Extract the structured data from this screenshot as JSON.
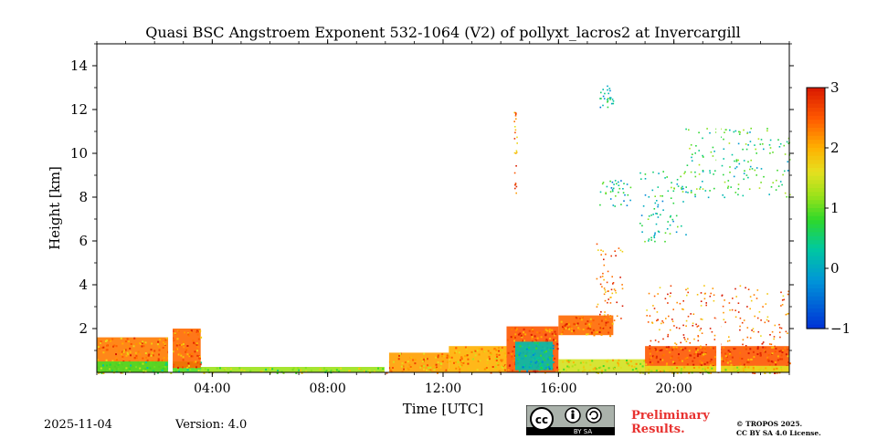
{
  "chart_data": {
    "type": "heatmap",
    "title": "Quasi BSC Angstroem Exponent 532-1064 (V2) of pollyxt_lacros2 at Invercargill",
    "xlabel": "Time [UTC]",
    "ylabel": "Height [km]",
    "xlim_hours": [
      0,
      24
    ],
    "ylim_km": [
      0,
      15
    ],
    "x_ticks": [
      {
        "hour": 4,
        "label": "04:00"
      },
      {
        "hour": 8,
        "label": "08:00"
      },
      {
        "hour": 12,
        "label": "12:00"
      },
      {
        "hour": 16,
        "label": "16:00"
      },
      {
        "hour": 20,
        "label": "20:00"
      }
    ],
    "y_ticks": [
      {
        "km": 2,
        "label": "2"
      },
      {
        "km": 4,
        "label": "4"
      },
      {
        "km": 6,
        "label": "6"
      },
      {
        "km": 8,
        "label": "8"
      },
      {
        "km": 10,
        "label": "10"
      },
      {
        "km": 12,
        "label": "12"
      },
      {
        "km": 14,
        "label": "14"
      }
    ],
    "colorbar": {
      "range": [
        -1,
        3
      ],
      "ticks": [
        {
          "value": 3,
          "label": "3"
        },
        {
          "value": 2,
          "label": "2"
        },
        {
          "value": 1,
          "label": "1"
        },
        {
          "value": 0,
          "label": "0"
        },
        {
          "value": -1,
          "label": "−1"
        }
      ]
    },
    "regions": [
      {
        "name": "boundary-layer-morning",
        "t0": 0.0,
        "t1": 2.6,
        "h0": 0.0,
        "h1": 1.6,
        "value": 2.3
      },
      {
        "name": "boundary-layer-morning-base",
        "t0": 0.0,
        "t1": 3.6,
        "h0": 0.0,
        "h1": 0.5,
        "value": 0.9
      },
      {
        "name": "aerosol-plume-03h",
        "t0": 2.6,
        "t1": 3.6,
        "h0": 0.2,
        "h1": 2.0,
        "value": 2.4
      },
      {
        "name": "low-layer-04-10h",
        "t0": 3.6,
        "t1": 10.0,
        "h0": 0.0,
        "h1": 0.25,
        "value": 1.2
      },
      {
        "name": "low-layer-10-12h",
        "t0": 10.0,
        "t1": 12.2,
        "h0": 0.0,
        "h1": 0.9,
        "value": 2.1
      },
      {
        "name": "low-layer-12-14h",
        "t0": 12.2,
        "t1": 14.2,
        "h0": 0.0,
        "h1": 1.2,
        "value": 2.0
      },
      {
        "name": "cloud-14-16h",
        "t0": 14.2,
        "t1": 16.0,
        "h0": 0.0,
        "h1": 2.1,
        "value": 2.5
      },
      {
        "name": "cloud-core-15h",
        "t0": 14.5,
        "t1": 15.8,
        "h0": 0.1,
        "h1": 1.4,
        "value": 0.2
      },
      {
        "name": "cloud-16-18h",
        "t0": 16.0,
        "t1": 17.9,
        "h0": 1.7,
        "h1": 2.6,
        "value": 2.4
      },
      {
        "name": "low-layer-16-19h",
        "t0": 16.0,
        "t1": 19.0,
        "h0": 0.0,
        "h1": 0.6,
        "value": 1.5
      },
      {
        "name": "aerosol-evening",
        "t0": 19.0,
        "t1": 24.0,
        "h0": 0.0,
        "h1": 1.2,
        "value": 2.5
      },
      {
        "name": "aerosol-evening-base",
        "t0": 19.0,
        "t1": 24.0,
        "h0": 0.0,
        "h1": 0.3,
        "value": 1.6
      }
    ],
    "gaps_hours": [
      2.55,
      10.05,
      21.55
    ],
    "scatter_clouds": [
      {
        "name": "cirrus-1",
        "t0": 18.8,
        "t1": 20.4,
        "h0": 6.0,
        "h1": 9.2,
        "value": 0.4
      },
      {
        "name": "cirrus-2",
        "t0": 20.4,
        "t1": 24.0,
        "h0": 8.0,
        "h1": 11.2,
        "value": 0.6
      },
      {
        "name": "cirrus-3",
        "t0": 17.4,
        "t1": 18.5,
        "h0": 7.6,
        "h1": 8.8,
        "value": 0.3
      },
      {
        "name": "cirrus-4",
        "t0": 17.4,
        "t1": 17.9,
        "h0": 12.1,
        "h1": 13.1,
        "value": 0.2
      },
      {
        "name": "column-17h",
        "t0": 17.3,
        "t1": 18.2,
        "h0": 2.0,
        "h1": 6.0,
        "value": 2.4
      },
      {
        "name": "column-14-5h",
        "t0": 14.45,
        "t1": 14.55,
        "h0": 8.0,
        "h1": 12.0,
        "value": 2.3
      },
      {
        "name": "scatter-evening",
        "t0": 19.0,
        "t1": 24.0,
        "h0": 1.2,
        "h1": 4.0,
        "value": 2.4
      }
    ]
  },
  "footer": {
    "date": "2025-11-04",
    "version": "Version: 4.0",
    "preliminary_line1": "Preliminary",
    "preliminary_line2": "Results.",
    "copyright_line1": "© TROPOS 2025.",
    "copyright_line2": "CC BY SA 4.0 License.",
    "license_text": "BY  SA"
  }
}
